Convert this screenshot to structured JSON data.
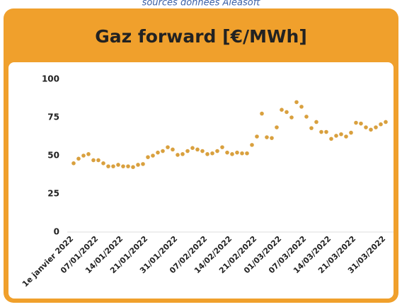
{
  "source": "sources données Aleasoft",
  "chart_data": {
    "type": "scatter",
    "title": "Gaz forward [€/MWh]",
    "color": "#d9a03e",
    "categories": [
      "1e janvier 2022",
      null,
      null,
      null,
      null,
      "07/01/2022",
      null,
      null,
      null,
      null,
      "14/01/2022",
      null,
      null,
      null,
      null,
      "21/01/2022",
      null,
      null,
      null,
      null,
      null,
      "31/01/2022",
      null,
      null,
      null,
      null,
      null,
      "07/02/2022",
      null,
      null,
      null,
      null,
      "14/02/2022",
      null,
      null,
      null,
      null,
      "21/02/2022",
      null,
      null,
      null,
      null,
      "01/03/2022",
      null,
      null,
      null,
      null,
      "07/03/2022",
      null,
      null,
      null,
      null,
      "14/03/2022",
      null,
      null,
      null,
      null,
      "21/03/2022",
      null,
      null,
      null,
      null,
      null,
      "31/03/2022"
    ],
    "values": [
      45,
      48,
      50,
      51,
      47,
      47,
      45,
      43,
      43,
      44,
      43,
      43,
      42.5,
      44,
      44.5,
      49,
      50,
      52,
      53,
      55.5,
      54,
      50.5,
      51,
      53,
      55,
      54,
      53,
      51,
      51.5,
      53,
      55.5,
      52,
      51,
      52,
      51.5,
      51.5,
      57,
      62.5,
      77.5,
      62,
      61.5,
      68.5,
      80,
      78.5,
      75,
      85,
      82,
      75.5,
      68,
      72,
      65.5,
      65.5,
      61,
      63,
      64,
      62.5,
      65,
      71.5,
      71,
      68.5,
      67,
      68.5,
      70.5,
      72
    ],
    "ylim": [
      0,
      100
    ],
    "yticks": [
      0,
      25,
      50,
      75,
      100
    ]
  }
}
